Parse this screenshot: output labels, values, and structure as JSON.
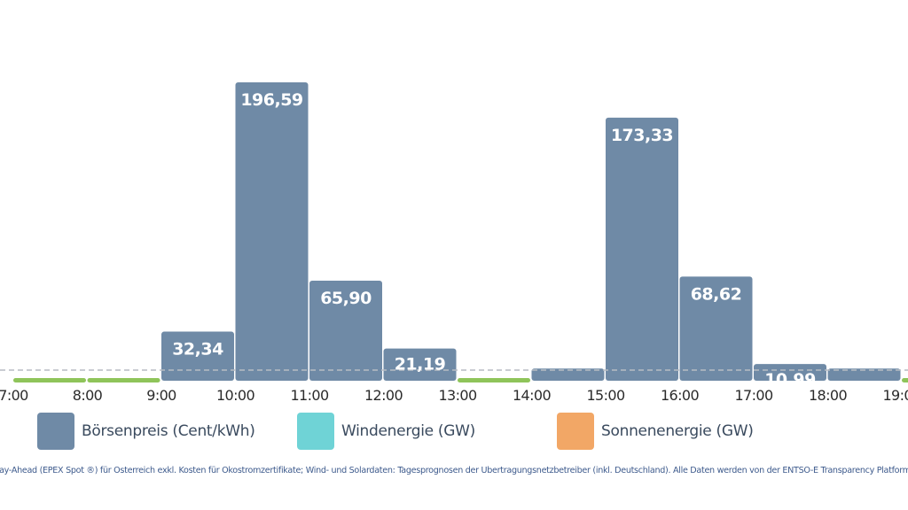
{
  "chart_data": {
    "type": "bar",
    "categories": [
      "7:00",
      "8:00",
      "9:00",
      "10:00",
      "11:00",
      "12:00",
      "13:00",
      "14:00",
      "15:00",
      "16:00",
      "17:00",
      "18:00",
      "19:00"
    ],
    "bars": [
      {
        "value": 0.3,
        "label": ""
      },
      {
        "value": 4.0,
        "label": ""
      },
      {
        "value": 32.34,
        "label": "32,34"
      },
      {
        "value": 196.59,
        "label": "196,59"
      },
      {
        "value": 65.9,
        "label": "65,90"
      },
      {
        "value": 21.19,
        "label": "21,19"
      },
      {
        "value": 0.3,
        "label": ""
      },
      {
        "value": 8.0,
        "label": ""
      },
      {
        "value": 173.33,
        "label": "173,33"
      },
      {
        "value": 68.62,
        "label": "68,62"
      },
      {
        "value": 10.99,
        "label": "10,99"
      },
      {
        "value": 8.0,
        "label": ""
      },
      {
        "value": 0.3,
        "label": ""
      }
    ],
    "negative_segments": [
      0,
      1,
      6,
      12
    ],
    "ylim": [
      0,
      196.59
    ],
    "zero_line": "dashed",
    "colors": {
      "bar": "#6f8aa6",
      "zero_line": "#b7bcc4",
      "negative": "#8fc45a"
    }
  },
  "legend": [
    {
      "label": "Börsenpreis (Cent/kWh)",
      "color": "#6f8aa6"
    },
    {
      "label": "Windenergie (GW)",
      "color": "#6fd3d6"
    },
    {
      "label": "Sonnenenergie (GW)",
      "color": "#f2a766"
    }
  ],
  "footnote": "Day-Ahead (EPEX Spot ®) für Österreich exkl. Kosten für Ökostromzertifikate; Wind- und Solardaten: Tagesprognosen der Übertragungsnetzbetreiber (inkl. Deutschland). Alle Daten werden von der ENTSO-E Transparency Platform bezogen."
}
